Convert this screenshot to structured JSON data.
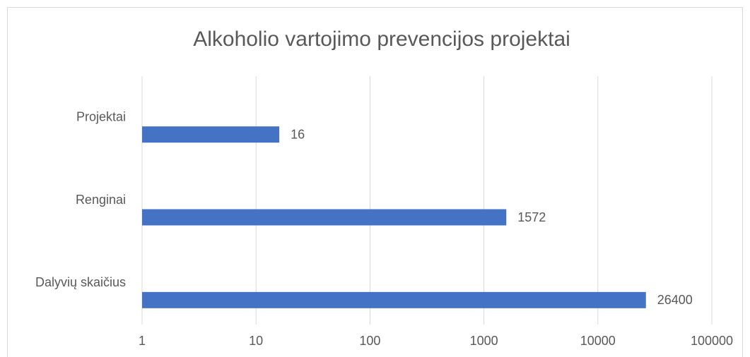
{
  "chart_data": {
    "type": "bar",
    "orientation": "horizontal",
    "title": "Alkoholio vartojimo prevencijos projektai",
    "categories": [
      "Projektai",
      "Renginai",
      "Dalyvių skaičius"
    ],
    "values": [
      16,
      1572,
      26400
    ],
    "color": "#4472c4",
    "xlim": [
      1,
      100000
    ],
    "xticks": [
      1,
      10,
      100,
      1000,
      10000,
      100000
    ],
    "log_scale": true,
    "grid": true
  }
}
